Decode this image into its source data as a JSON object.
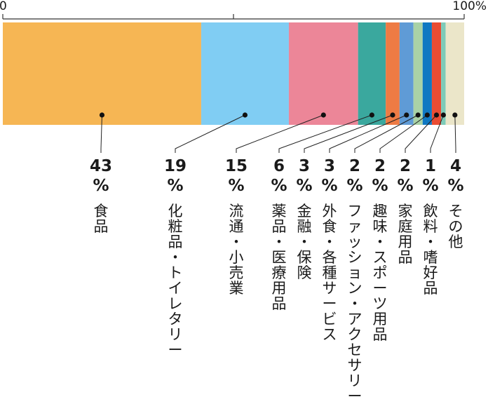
{
  "chart_data": {
    "type": "bar",
    "orientation": "horizontal-stacked-100",
    "axis": {
      "ticks": [
        {
          "value": 0,
          "label": "0"
        },
        {
          "value": 50,
          "label": ""
        },
        {
          "value": 100,
          "label": "100%"
        }
      ],
      "xlim": [
        0,
        100
      ]
    },
    "unit": "%",
    "segments": [
      {
        "name": "食品",
        "value": 43,
        "color": "#f6b654"
      },
      {
        "name": "化粧品・トイレタリー",
        "value": 19,
        "color": "#80cdf3"
      },
      {
        "name": "流通・小売業",
        "value": 15,
        "color": "#ec8698"
      },
      {
        "name": "薬品・医療用品",
        "value": 6,
        "color": "#3aa89e"
      },
      {
        "name": "金融・保険",
        "value": 3,
        "color": "#ee7b44"
      },
      {
        "name": "外食・各種サービス",
        "value": 3,
        "color": "#5f9bd6"
      },
      {
        "name": "ファッション・アクセサリー",
        "value": 2,
        "color": "#a9d2a6"
      },
      {
        "name": "趣味・スポーツ用品",
        "value": 2,
        "color": "#0f78c2"
      },
      {
        "name": "家庭用品",
        "value": 2,
        "color": "#e94c33"
      },
      {
        "name": "飲料・嗜好品",
        "value": 1,
        "color": "#7ecbb8"
      },
      {
        "name": "その他",
        "value": 4,
        "color": "#ebe6c9"
      }
    ]
  }
}
